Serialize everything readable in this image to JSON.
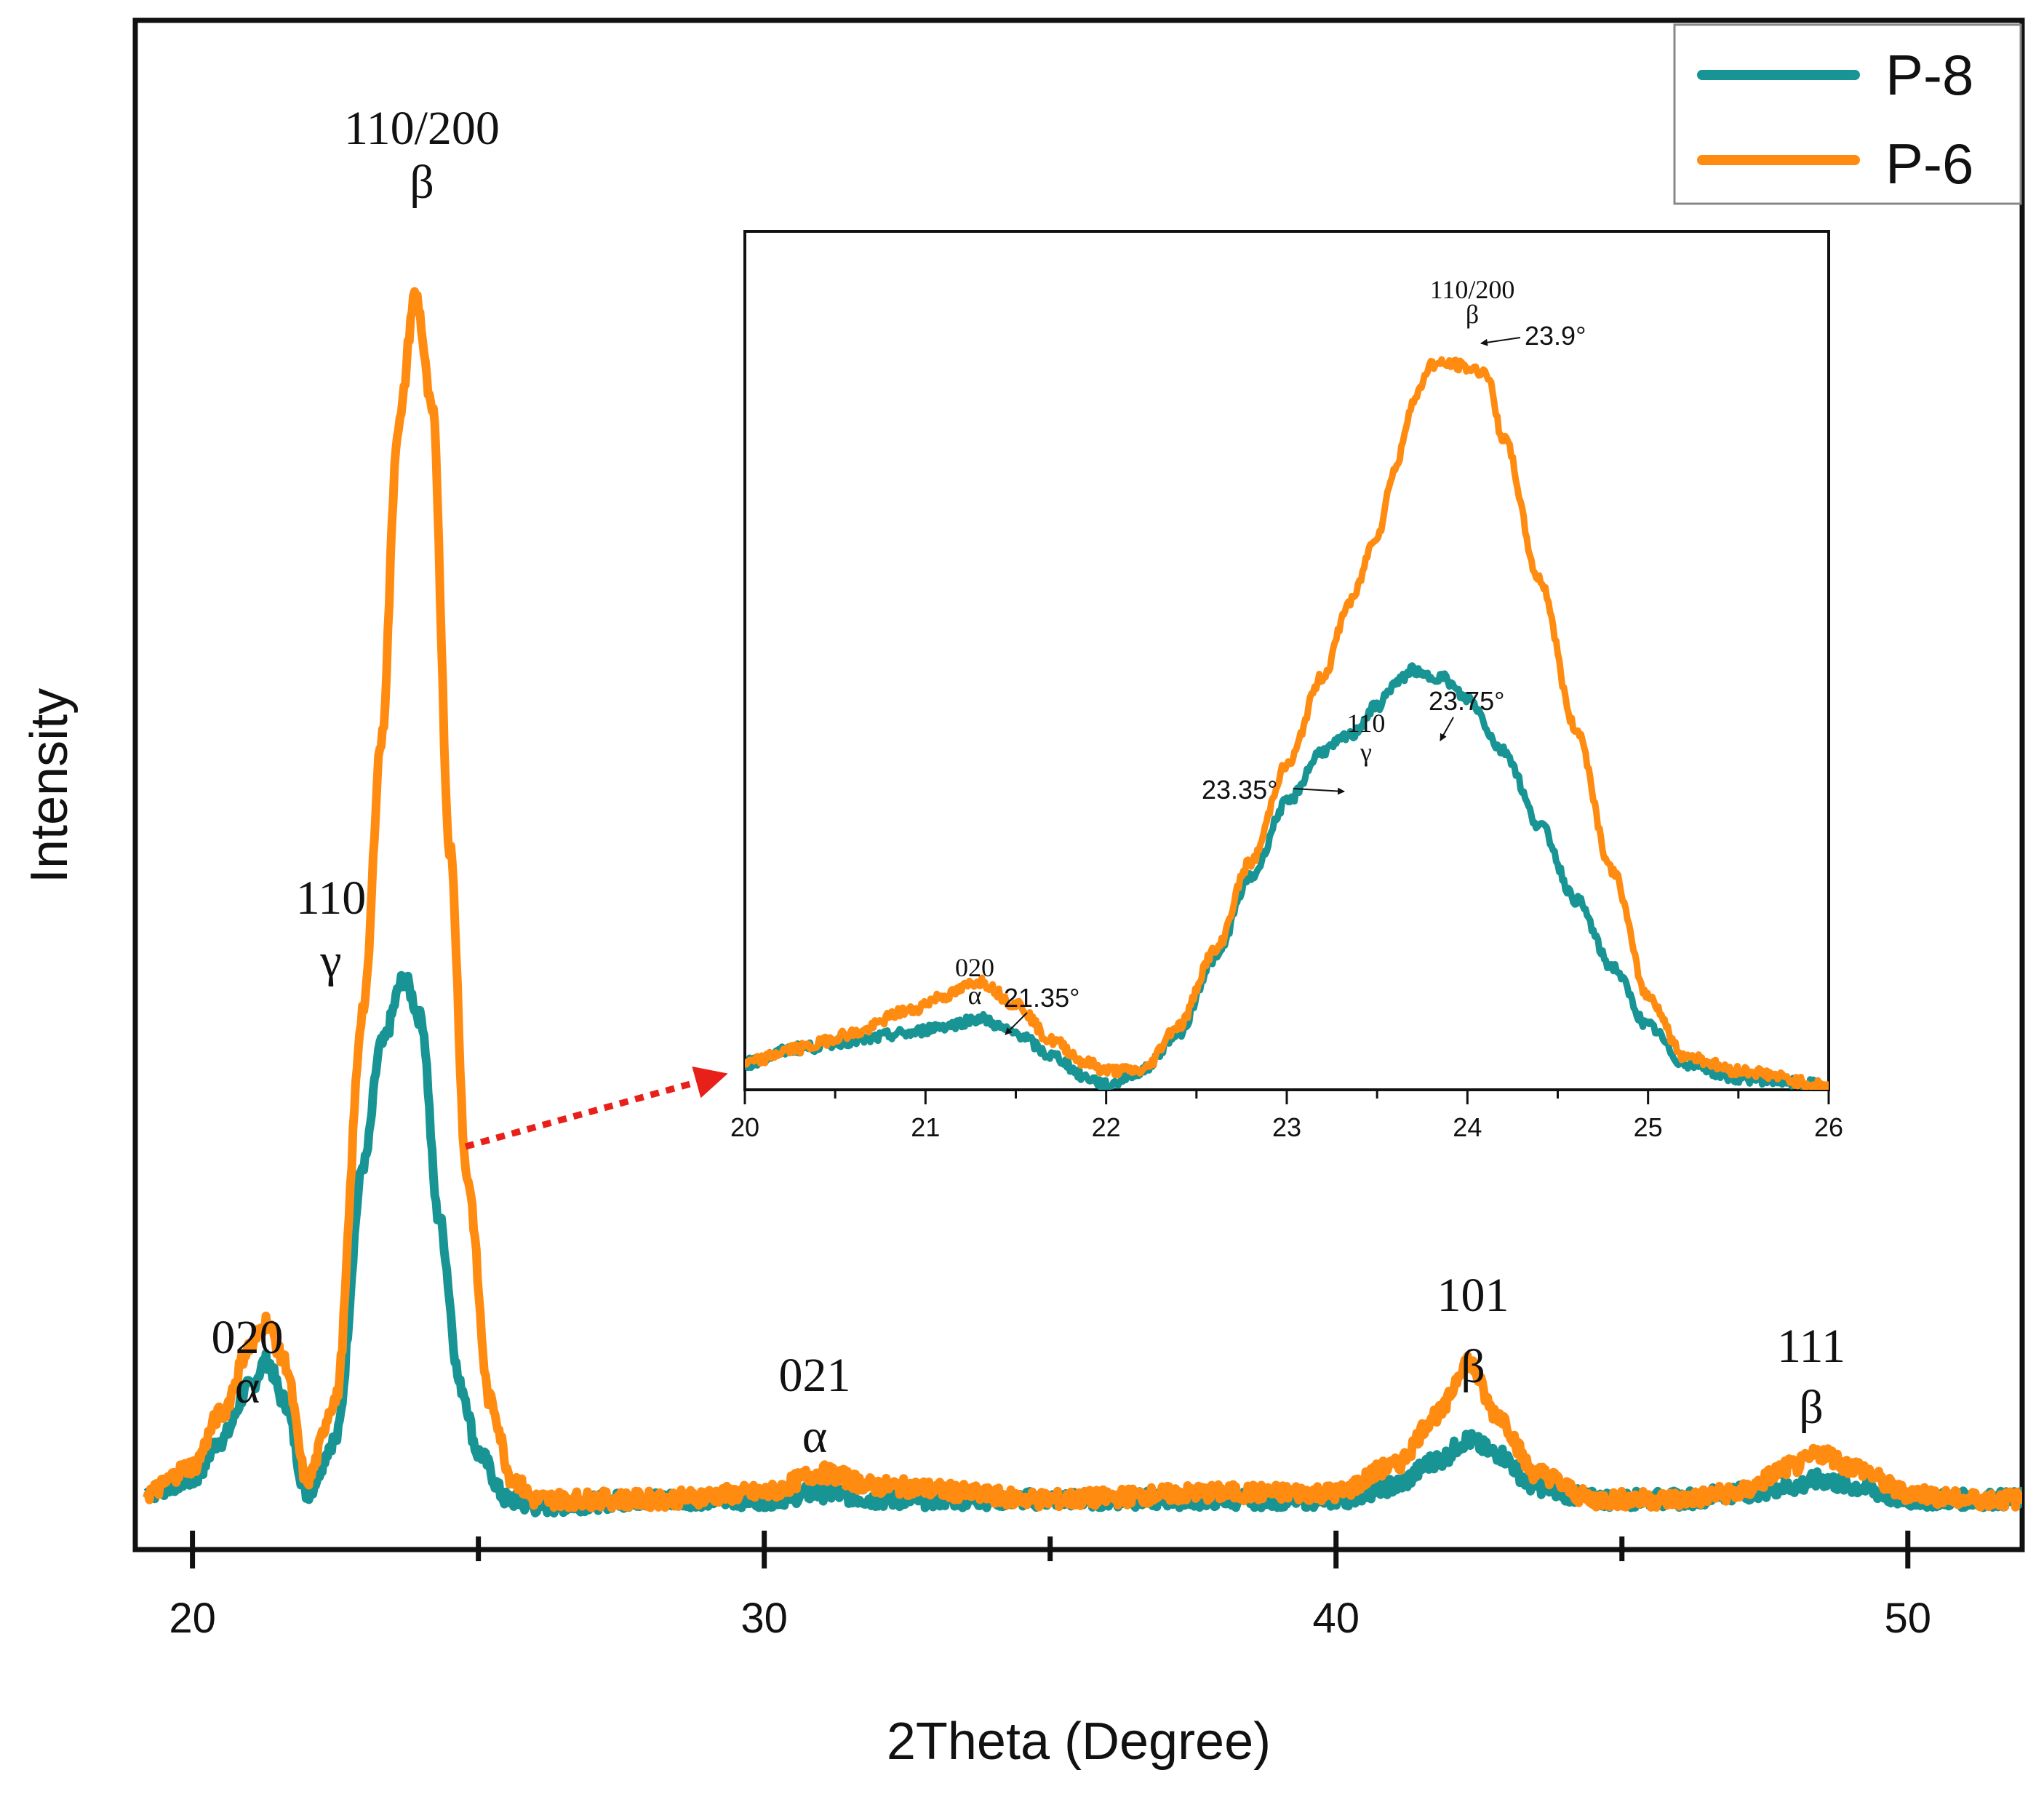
{
  "chart_data": [
    {
      "type": "line",
      "xlabel": "2Theta (Degree)",
      "ylabel": "Intensity",
      "xlim": [
        19,
        52
      ],
      "ylim": [
        0,
        100
      ],
      "xticks": [
        20,
        30,
        40,
        50
      ],
      "grid": false,
      "legend": "top-right",
      "colors": {
        "P-8": "#179493",
        "P-6": "#ff8b10"
      },
      "series": [
        {
          "name": "P-8",
          "x": [
            19.2,
            20.0,
            20.5,
            21.0,
            21.3,
            21.6,
            22.0,
            22.5,
            23.0,
            23.3,
            23.7,
            24.0,
            24.3,
            24.7,
            25.0,
            25.5,
            26.0,
            28,
            30,
            31,
            32,
            35,
            38,
            40,
            41,
            41.8,
            42.3,
            42.8,
            43.5,
            44.5,
            46,
            47,
            48,
            48.5,
            49,
            50,
            51,
            52
          ],
          "y": [
            1,
            2,
            5,
            9,
            11,
            8,
            1,
            5,
            26,
            35,
            40,
            37,
            22,
            9,
            4,
            0.5,
            0,
            0.5,
            0.5,
            1,
            0.5,
            0.5,
            0.5,
            0.5,
            1.5,
            3.5,
            5,
            4,
            1.5,
            0.5,
            0.5,
            1,
            1.5,
            2,
            1.5,
            0.5,
            0.5,
            0.5
          ]
        },
        {
          "name": "P-6",
          "x": [
            19.2,
            20.0,
            20.5,
            21.0,
            21.3,
            21.6,
            22.0,
            22.5,
            23.0,
            23.3,
            23.6,
            23.9,
            24.2,
            24.5,
            24.8,
            25.2,
            25.6,
            26.0,
            28,
            30,
            31,
            32,
            35,
            38,
            40,
            41,
            41.8,
            42.3,
            42.8,
            43.5,
            44.5,
            46,
            47,
            48,
            48.5,
            49,
            50,
            51,
            52
          ],
          "y": [
            1,
            3,
            7,
            12,
            14,
            11,
            2,
            8,
            38,
            58,
            82,
            92,
            83,
            50,
            25,
            8,
            2,
            0.5,
            0.5,
            1,
            2.5,
            1.5,
            0.5,
            1,
            1,
            3,
            7,
            11,
            7,
            2.5,
            0.5,
            0.5,
            1,
            3,
            4,
            3,
            1,
            0.5,
            0.5
          ]
        }
      ],
      "annotations": [
        {
          "x": 21.2,
          "lines": [
            "020",
            "α"
          ]
        },
        {
          "x": 24.0,
          "lines": [
            "110/200",
            "β"
          ]
        },
        {
          "x": 23.0,
          "lines": [
            "110",
            "γ"
          ]
        },
        {
          "x": 31.0,
          "lines": [
            "021",
            "α"
          ]
        },
        {
          "x": 42.5,
          "lines": [
            "101",
            "β"
          ]
        },
        {
          "x": 48.6,
          "lines": [
            "111",
            "β"
          ]
        }
      ]
    },
    {
      "type": "line",
      "title": "inset",
      "xlim": [
        20,
        26
      ],
      "ylim": [
        0,
        100
      ],
      "xticks": [
        20,
        21,
        22,
        23,
        24,
        25,
        26
      ],
      "series": [
        {
          "name": "P-8",
          "x": [
            20.0,
            20.3,
            20.6,
            20.9,
            21.1,
            21.3,
            21.5,
            21.7,
            21.9,
            22.0,
            22.2,
            22.4,
            22.6,
            22.8,
            23.0,
            23.2,
            23.35,
            23.5,
            23.6,
            23.7,
            23.75,
            23.85,
            24.0,
            24.2,
            24.4,
            24.6,
            24.8,
            25.0,
            25.2,
            25.5,
            26.0
          ],
          "y": [
            3,
            5,
            6,
            7,
            8,
            9,
            7,
            4,
            1,
            0,
            2,
            7,
            17,
            28,
            38,
            45,
            47,
            51,
            54,
            56,
            55,
            55,
            52,
            45,
            35,
            25,
            16,
            8,
            3,
            1,
            0
          ]
        },
        {
          "name": "P-6",
          "x": [
            20.0,
            20.3,
            20.6,
            20.9,
            21.1,
            21.3,
            21.5,
            21.7,
            21.9,
            22.0,
            22.2,
            22.4,
            22.6,
            22.8,
            23.0,
            23.2,
            23.35,
            23.5,
            23.6,
            23.7,
            23.8,
            23.9,
            24.1,
            24.2,
            24.4,
            24.6,
            24.8,
            25.0,
            25.2,
            25.5,
            26.0
          ],
          "y": [
            3,
            5,
            7,
            10,
            12,
            14,
            11,
            6,
            3,
            2,
            2,
            8,
            18,
            30,
            43,
            55,
            65,
            74,
            83,
            92,
            97,
            97,
            96,
            87,
            68,
            48,
            29,
            12,
            4,
            2,
            0
          ]
        }
      ],
      "annotations": [
        {
          "x": 21.2,
          "lines": [
            "020",
            "α"
          ],
          "value_label": "21.35°"
        },
        {
          "x": 23.3,
          "lines": [
            "110",
            "γ"
          ],
          "value_label": "23.35°"
        },
        {
          "x": 23.75,
          "value_label": "23.75°"
        },
        {
          "x": 23.95,
          "lines": [
            "110/200",
            "β"
          ],
          "value_label": "23.9°"
        }
      ]
    }
  ]
}
